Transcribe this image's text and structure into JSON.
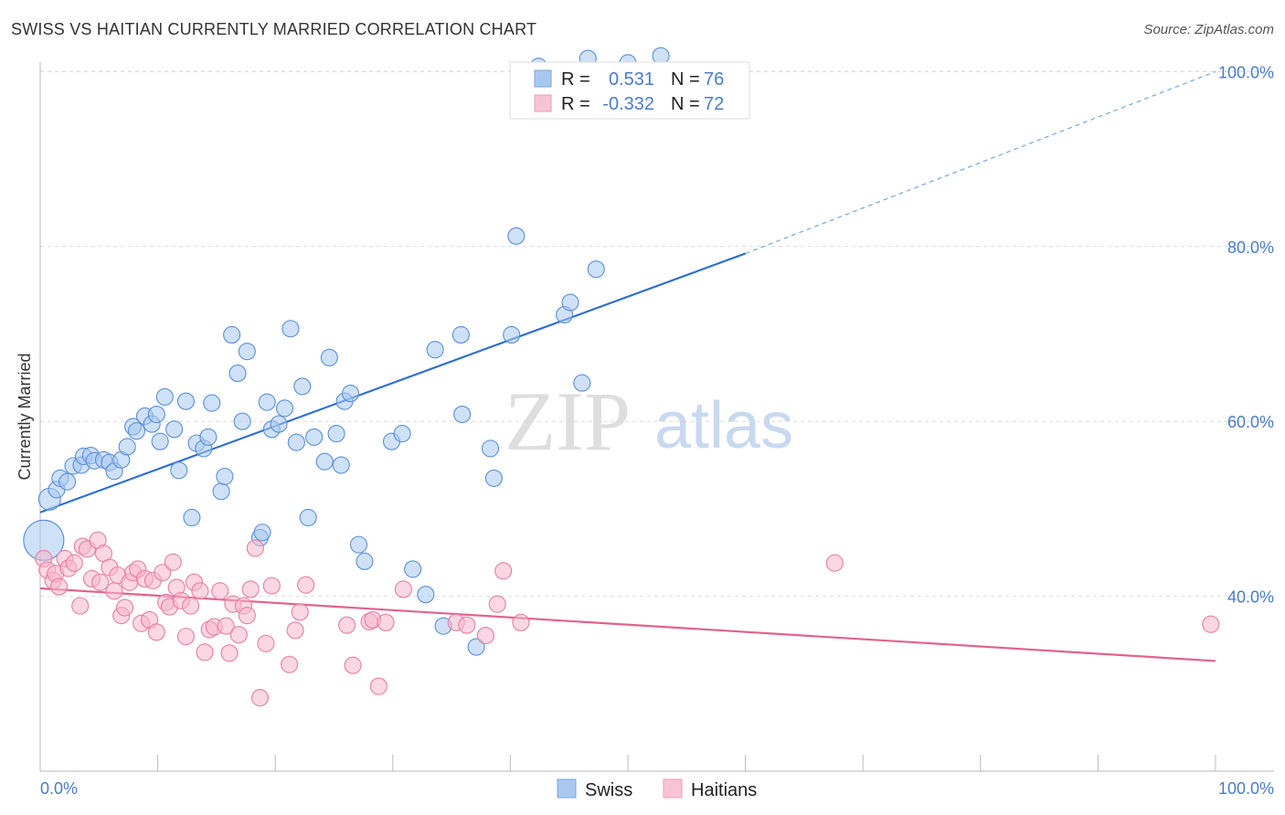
{
  "header": {
    "title": "SWISS VS HAITIAN CURRENTLY MARRIED CORRELATION CHART",
    "source": "Source: ZipAtlas.com"
  },
  "watermark": {
    "zip": "ZIP",
    "atlas": "atlas"
  },
  "legend_stats": [
    {
      "r_label": "R =",
      "r_value": "0.531",
      "n_label": "N =",
      "n_value": "76",
      "color": "#a8c8f0"
    },
    {
      "r_label": "R =",
      "r_value": "-0.332",
      "n_label": "N =",
      "n_value": "72",
      "color": "#f7b6cc"
    }
  ],
  "chart_data": {
    "type": "scatter",
    "ylabel": "Currently Married",
    "xlim": [
      0,
      100
    ],
    "ylim": [
      20,
      100
    ],
    "x_tick_labels": [
      "0.0%",
      "100.0%"
    ],
    "y_ticks": [
      40,
      60,
      80,
      100
    ],
    "y_tick_labels": [
      "40.0%",
      "60.0%",
      "80.0%",
      "100.0%"
    ],
    "grid": true,
    "legend": "bottom",
    "series": [
      {
        "name": "Swiss",
        "color": "#a8c8f0",
        "stroke": "#5b8fd6",
        "trend": {
          "x": [
            0,
            60
          ],
          "y": [
            49.6,
            79.2
          ],
          "dashed_extension_to": [
            100,
            100
          ]
        },
        "points": [
          [
            0.3,
            46.4,
            22
          ],
          [
            0.8,
            51.1,
            12
          ],
          [
            1.4,
            52.2,
            9
          ],
          [
            1.7,
            53.5,
            9
          ],
          [
            2.3,
            53.1,
            9
          ],
          [
            2.8,
            54.9,
            9
          ],
          [
            3.5,
            55.0,
            9
          ],
          [
            3.7,
            56.0,
            9
          ],
          [
            4.3,
            56.1,
            9
          ],
          [
            4.6,
            55.5,
            9
          ],
          [
            5.4,
            55.6,
            9
          ],
          [
            5.9,
            55.3,
            9
          ],
          [
            6.3,
            54.3,
            9
          ],
          [
            6.9,
            55.6,
            9
          ],
          [
            7.4,
            57.1,
            9
          ],
          [
            7.9,
            59.4,
            9
          ],
          [
            8.2,
            58.9,
            9
          ],
          [
            8.9,
            60.6,
            9
          ],
          [
            9.5,
            59.7,
            9
          ],
          [
            9.9,
            60.8,
            9
          ],
          [
            10.2,
            57.7,
            9
          ],
          [
            10.6,
            62.8,
            9
          ],
          [
            11.4,
            59.1,
            9
          ],
          [
            11.8,
            54.4,
            9
          ],
          [
            12.4,
            62.3,
            9
          ],
          [
            12.9,
            49.0,
            9
          ],
          [
            13.3,
            57.5,
            9
          ],
          [
            13.9,
            56.9,
            9
          ],
          [
            14.3,
            58.2,
            9
          ],
          [
            14.6,
            62.1,
            9
          ],
          [
            15.4,
            52.0,
            9
          ],
          [
            15.7,
            53.7,
            9
          ],
          [
            16.3,
            69.9,
            9
          ],
          [
            16.8,
            65.5,
            9
          ],
          [
            17.2,
            60.0,
            9
          ],
          [
            17.6,
            68.0,
            9
          ],
          [
            18.7,
            46.7,
            9
          ],
          [
            18.9,
            47.3,
            9
          ],
          [
            19.3,
            62.2,
            9
          ],
          [
            19.7,
            59.1,
            9
          ],
          [
            20.3,
            59.7,
            9
          ],
          [
            20.8,
            61.5,
            9
          ],
          [
            21.3,
            70.6,
            9
          ],
          [
            21.8,
            57.6,
            9
          ],
          [
            22.3,
            64.0,
            9
          ],
          [
            22.8,
            49.0,
            9
          ],
          [
            23.3,
            58.2,
            9
          ],
          [
            24.2,
            55.4,
            9
          ],
          [
            24.6,
            67.3,
            9
          ],
          [
            25.2,
            58.6,
            9
          ],
          [
            25.6,
            55.0,
            9
          ],
          [
            25.9,
            62.3,
            9
          ],
          [
            26.4,
            63.2,
            9
          ],
          [
            27.1,
            45.9,
            9
          ],
          [
            27.6,
            44.0,
            9
          ],
          [
            29.9,
            57.7,
            9
          ],
          [
            30.8,
            58.6,
            9
          ],
          [
            31.7,
            43.1,
            9
          ],
          [
            32.8,
            40.2,
            9
          ],
          [
            33.6,
            68.2,
            9
          ],
          [
            34.3,
            36.6,
            9
          ],
          [
            35.8,
            69.9,
            9
          ],
          [
            35.9,
            60.8,
            9
          ],
          [
            37.1,
            34.2,
            9
          ],
          [
            38.3,
            56.9,
            9
          ],
          [
            38.6,
            53.5,
            9
          ],
          [
            40.1,
            69.9,
            9
          ],
          [
            40.5,
            81.2,
            9
          ],
          [
            44.6,
            72.2,
            9
          ],
          [
            45.1,
            73.6,
            9
          ],
          [
            46.1,
            64.4,
            9
          ],
          [
            47.3,
            77.4,
            9
          ],
          [
            42.4,
            100.6,
            9
          ],
          [
            46.6,
            101.5,
            9
          ],
          [
            50.0,
            101.0,
            9
          ],
          [
            52.8,
            101.8,
            9
          ]
        ]
      },
      {
        "name": "Haitians",
        "color": "#f7b6cc",
        "stroke": "#e67ea3",
        "trend": {
          "x": [
            0,
            100
          ],
          "y": [
            40.9,
            32.6
          ]
        },
        "points": [
          [
            0.3,
            44.3,
            9
          ],
          [
            0.6,
            43.0,
            9
          ],
          [
            1.1,
            41.8,
            9
          ],
          [
            1.3,
            42.6,
            9
          ],
          [
            1.6,
            41.1,
            9
          ],
          [
            2.1,
            44.3,
            9
          ],
          [
            2.4,
            43.2,
            9
          ],
          [
            2.9,
            43.8,
            9
          ],
          [
            3.4,
            38.9,
            9
          ],
          [
            3.6,
            45.7,
            9
          ],
          [
            4.0,
            45.4,
            9
          ],
          [
            4.4,
            42.0,
            9
          ],
          [
            4.9,
            46.4,
            9
          ],
          [
            5.1,
            41.6,
            9
          ],
          [
            5.4,
            44.9,
            9
          ],
          [
            5.9,
            43.3,
            9
          ],
          [
            6.3,
            40.6,
            9
          ],
          [
            6.6,
            42.4,
            9
          ],
          [
            6.9,
            37.8,
            9
          ],
          [
            7.2,
            38.7,
            9
          ],
          [
            7.6,
            41.6,
            9
          ],
          [
            7.9,
            42.7,
            9
          ],
          [
            8.3,
            43.1,
            9
          ],
          [
            8.6,
            36.9,
            9
          ],
          [
            8.9,
            42.0,
            9
          ],
          [
            9.3,
            37.3,
            9
          ],
          [
            9.6,
            41.8,
            9
          ],
          [
            9.9,
            35.9,
            9
          ],
          [
            10.4,
            42.7,
            9
          ],
          [
            10.7,
            39.3,
            9
          ],
          [
            11.0,
            38.8,
            9
          ],
          [
            11.3,
            43.9,
            9
          ],
          [
            11.6,
            41.0,
            9
          ],
          [
            12.0,
            39.5,
            9
          ],
          [
            12.4,
            35.4,
            9
          ],
          [
            12.8,
            38.9,
            9
          ],
          [
            13.1,
            41.6,
            9
          ],
          [
            13.6,
            40.6,
            9
          ],
          [
            14.0,
            33.6,
            9
          ],
          [
            14.4,
            36.2,
            9
          ],
          [
            14.8,
            36.5,
            9
          ],
          [
            15.3,
            40.6,
            9
          ],
          [
            15.8,
            36.6,
            9
          ],
          [
            16.1,
            33.5,
            9
          ],
          [
            16.4,
            39.1,
            9
          ],
          [
            16.9,
            35.6,
            9
          ],
          [
            17.3,
            38.9,
            9
          ],
          [
            17.6,
            37.8,
            9
          ],
          [
            17.9,
            40.8,
            9
          ],
          [
            18.3,
            45.5,
            9
          ],
          [
            18.7,
            28.4,
            9
          ],
          [
            19.2,
            34.6,
            9
          ],
          [
            19.7,
            41.2,
            9
          ],
          [
            21.2,
            32.2,
            9
          ],
          [
            21.7,
            36.1,
            9
          ],
          [
            22.1,
            38.2,
            9
          ],
          [
            22.6,
            41.3,
            9
          ],
          [
            26.1,
            36.7,
            9
          ],
          [
            26.6,
            32.1,
            9
          ],
          [
            28.0,
            37.1,
            9
          ],
          [
            28.3,
            37.3,
            9
          ],
          [
            28.8,
            29.7,
            9
          ],
          [
            29.4,
            37.0,
            9
          ],
          [
            30.9,
            40.8,
            9
          ],
          [
            35.4,
            37.0,
            9
          ],
          [
            36.3,
            36.7,
            9
          ],
          [
            37.9,
            35.5,
            9
          ],
          [
            38.9,
            39.1,
            9
          ],
          [
            39.4,
            42.9,
            9
          ],
          [
            40.9,
            37.0,
            9
          ],
          [
            67.6,
            43.8,
            9
          ],
          [
            99.6,
            36.8,
            9
          ]
        ]
      }
    ]
  }
}
